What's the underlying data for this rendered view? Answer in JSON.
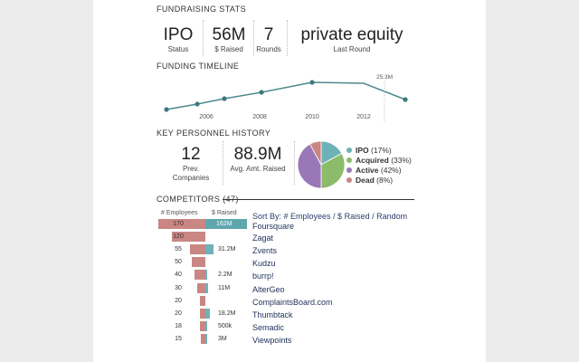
{
  "sections": {
    "fundraising": "FUNDRAISING STATS",
    "timeline": "FUNDING TIMELINE",
    "personnel": "KEY PERSONNEL HISTORY",
    "competitors": "COMPETITORS (47)"
  },
  "fundraising_stats": [
    {
      "value": "IPO",
      "label": "Status"
    },
    {
      "value": "56M",
      "label": "$ Raised"
    },
    {
      "value": "7",
      "label": "Rounds"
    },
    {
      "value": "private equity",
      "label": "Last Round"
    }
  ],
  "timeline": {
    "peak_label": "25.3M",
    "x_ticks": [
      "2006",
      "2008",
      "2010",
      "2012"
    ]
  },
  "personnel_stats": [
    {
      "value": "12",
      "label_line1": "Prev.",
      "label_line2": "Companies"
    },
    {
      "value": "88.9M",
      "label_line1": "Avg. Amt. Raised",
      "label_line2": ""
    }
  ],
  "pie": {
    "slices": [
      {
        "name": "IPO",
        "pct": "(17%)",
        "value": 17,
        "color": "#6fb1b8"
      },
      {
        "name": "Acquired",
        "pct": "(33%)",
        "value": 33,
        "color": "#8cbb6a"
      },
      {
        "name": "Active",
        "pct": "(42%)",
        "value": 42,
        "color": "#9a78b8"
      },
      {
        "name": "Dead",
        "pct": "(8%)",
        "value": 8,
        "color": "#c98683"
      }
    ]
  },
  "competitors": {
    "header_left": "# Employees",
    "header_right": "$ Raised",
    "sort_prefix": "Sort By:",
    "sort_options": "# Employees / $ Raised / Random",
    "rows": [
      {
        "name": "Foursquare",
        "employees": "170",
        "emp_value": 170,
        "raised": "162M",
        "raised_value": 162
      },
      {
        "name": "Zagat",
        "employees": "120",
        "emp_value": 120,
        "raised": "",
        "raised_value": 0
      },
      {
        "name": "Zvents",
        "employees": "55",
        "emp_value": 55,
        "raised": "31.2M",
        "raised_value": 31.2
      },
      {
        "name": "Kudzu",
        "employees": "50",
        "emp_value": 50,
        "raised": "",
        "raised_value": 0
      },
      {
        "name": "burrp!",
        "employees": "40",
        "emp_value": 40,
        "raised": "2.2M",
        "raised_value": 2.2
      },
      {
        "name": "AlterGeo",
        "employees": "30",
        "emp_value": 30,
        "raised": "11M",
        "raised_value": 11
      },
      {
        "name": "ComplaintsBoard.com",
        "employees": "20",
        "emp_value": 20,
        "raised": "",
        "raised_value": 0
      },
      {
        "name": "Thumbtack",
        "employees": "20",
        "emp_value": 20,
        "raised": "18.2M",
        "raised_value": 18.2
      },
      {
        "name": "Semadic",
        "employees": "18",
        "emp_value": 18,
        "raised": "500k",
        "raised_value": 0.5
      },
      {
        "name": "Viewpoints",
        "employees": "15",
        "emp_value": 15,
        "raised": "3M",
        "raised_value": 3
      }
    ]
  },
  "colors": {
    "accent": "#6fb1b8",
    "employees_bar": "#c98683",
    "line": "#4d8a8e",
    "link": "#1f2f5a"
  }
}
